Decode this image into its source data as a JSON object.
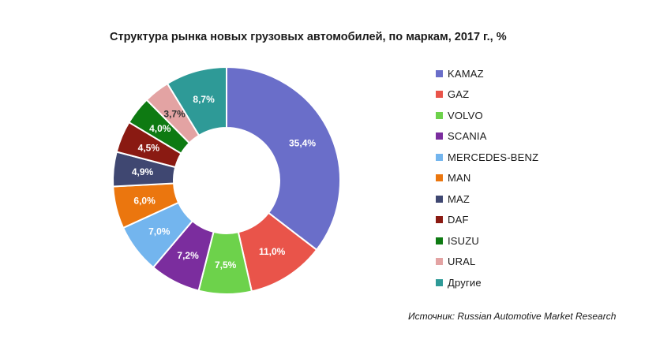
{
  "chart_data": {
    "type": "pie",
    "title": "Структура рынка новых грузовых автомобилей, по маркам, 2017 г., %",
    "donut": true,
    "legend_position": "right",
    "categories": [
      "KAMAZ",
      "GAZ",
      "VOLVO",
      "SCANIA",
      "MERCEDES-BENZ",
      "MAN",
      "MAZ",
      "DAF",
      "ISUZU",
      "URAL",
      "Другие"
    ],
    "values": [
      35.4,
      11.0,
      7.5,
      7.2,
      7.0,
      6.0,
      4.9,
      4.5,
      4.0,
      3.7,
      8.7
    ],
    "data_labels": [
      "35,4%",
      "11,0%",
      "7,5%",
      "7,2%",
      "7,0%",
      "6,0%",
      "4,9%",
      "4,5%",
      "4,0%",
      "3,7%",
      "8,7%"
    ],
    "colors": [
      "#6A6EC9",
      "#E9544A",
      "#6DD24B",
      "#7B2D9E",
      "#73B5EE",
      "#EB760E",
      "#3F4771",
      "#8A1A12",
      "#0E7A12",
      "#E3A3A3",
      "#2E9A97"
    ],
    "label_dark": [
      false,
      false,
      false,
      false,
      false,
      false,
      false,
      false,
      false,
      true,
      false
    ]
  },
  "source": "Источник: Russian Automotive Market Research"
}
